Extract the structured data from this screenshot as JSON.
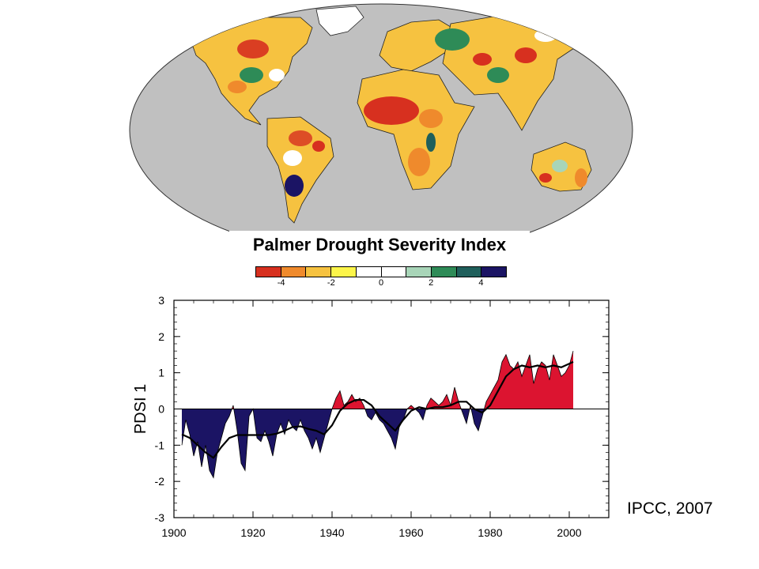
{
  "map": {
    "title": "Palmer Drought Severity Index",
    "colorbar": {
      "colors": [
        "#d7301f",
        "#ef8a2c",
        "#f6c240",
        "#fdf54a",
        "#ffffff",
        "#ffffff",
        "#a8d5b8",
        "#2e8b57",
        "#1f5f5b",
        "#1b1464"
      ],
      "tick_labels": [
        "-4",
        "-2",
        "0",
        "2",
        "4"
      ],
      "tick_values": [
        -4,
        -2,
        0,
        2,
        4
      ],
      "range": [
        -5,
        5
      ]
    },
    "colors": {
      "ocean": "#c0c0c0",
      "land_base": "#f6c240",
      "dry": "#d7301f",
      "wet": "#1f6b4f"
    }
  },
  "chart_data": {
    "type": "area",
    "title": "",
    "xlabel": "",
    "ylabel": "PDSI 1",
    "xlim": [
      1900,
      2010
    ],
    "ylim": [
      -3,
      3
    ],
    "x_ticks": [
      1900,
      1920,
      1940,
      1960,
      1980,
      2000
    ],
    "y_ticks": [
      -3,
      -2,
      -1,
      0,
      1,
      2,
      3
    ],
    "grid": false,
    "positive_color": "#dc1430",
    "negative_color": "#1b1464",
    "series": [
      {
        "values_x": [
          1902,
          1903,
          1904,
          1905,
          1906,
          1907,
          1908,
          1909,
          1910,
          1911,
          1912,
          1913,
          1914,
          1915,
          1916,
          1917,
          1918,
          1919,
          1920,
          1921,
          1922,
          1923,
          1924,
          1925,
          1926,
          1927,
          1928,
          1929,
          1930,
          1931,
          1932,
          1933,
          1934,
          1935,
          1936,
          1937,
          1938,
          1939,
          1940,
          1941,
          1942,
          1943,
          1944,
          1945,
          1946,
          1947,
          1948,
          1949,
          1950,
          1951,
          1952,
          1953,
          1954,
          1955,
          1956,
          1957,
          1958,
          1959,
          1960,
          1961,
          1962,
          1963,
          1964,
          1965,
          1966,
          1967,
          1968,
          1969,
          1970,
          1971,
          1972,
          1973,
          1974,
          1975,
          1976,
          1977,
          1978,
          1979,
          1980,
          1981,
          1982,
          1983,
          1984,
          1985,
          1986,
          1987,
          1988,
          1989,
          1990,
          1991,
          1992,
          1993,
          1994,
          1995,
          1996,
          1997,
          1998,
          1999,
          2000,
          2001
        ],
        "values_y": [
          -1.0,
          -0.3,
          -0.7,
          -1.3,
          -0.9,
          -1.6,
          -1.0,
          -1.7,
          -1.9,
          -1.2,
          -0.8,
          -0.4,
          -0.2,
          0.1,
          -0.6,
          -1.5,
          -1.7,
          -0.2,
          0.0,
          -0.8,
          -0.9,
          -0.6,
          -0.9,
          -1.3,
          -0.7,
          -0.4,
          -0.7,
          -0.3,
          -0.5,
          -0.6,
          -0.3,
          -0.6,
          -0.8,
          -1.1,
          -0.8,
          -1.2,
          -0.8,
          -0.4,
          0.0,
          0.3,
          0.5,
          0.1,
          0.2,
          0.4,
          0.2,
          0.3,
          0.1,
          -0.2,
          -0.3,
          -0.1,
          -0.3,
          -0.4,
          -0.6,
          -0.8,
          -1.1,
          -0.5,
          -0.3,
          0.0,
          0.1,
          0.0,
          -0.1,
          -0.3,
          0.1,
          0.3,
          0.2,
          0.1,
          0.2,
          0.4,
          0.1,
          0.6,
          0.2,
          -0.1,
          -0.4,
          0.1,
          -0.4,
          -0.6,
          -0.2,
          0.2,
          0.4,
          0.6,
          0.8,
          1.3,
          1.5,
          1.2,
          1.1,
          1.3,
          0.9,
          1.2,
          1.5,
          0.7,
          1.1,
          1.3,
          1.2,
          0.8,
          1.5,
          1.2,
          0.9,
          1.0,
          1.2,
          1.6
        ]
      },
      {
        "values_x": [
          1902,
          1904,
          1906,
          1908,
          1910,
          1912,
          1914,
          1916,
          1918,
          1920,
          1922,
          1924,
          1926,
          1928,
          1930,
          1932,
          1934,
          1936,
          1938,
          1940,
          1942,
          1944,
          1946,
          1948,
          1950,
          1952,
          1954,
          1956,
          1958,
          1960,
          1962,
          1964,
          1966,
          1968,
          1970,
          1972,
          1974,
          1976,
          1978,
          1980,
          1982,
          1984,
          1986,
          1988,
          1990,
          1992,
          1994,
          1996,
          1998,
          2000,
          2001
        ],
        "values_y": [
          -0.7,
          -0.8,
          -1.0,
          -1.2,
          -1.35,
          -1.05,
          -0.8,
          -0.72,
          -0.72,
          -0.72,
          -0.72,
          -0.72,
          -0.68,
          -0.6,
          -0.5,
          -0.48,
          -0.55,
          -0.6,
          -0.7,
          -0.45,
          -0.05,
          0.15,
          0.25,
          0.25,
          0.1,
          -0.2,
          -0.4,
          -0.6,
          -0.3,
          -0.05,
          0.05,
          0.0,
          0.05,
          0.05,
          0.1,
          0.2,
          0.2,
          0.0,
          -0.1,
          0.1,
          0.5,
          0.9,
          1.1,
          1.2,
          1.15,
          1.2,
          1.15,
          1.2,
          1.15,
          1.25,
          1.3
        ]
      }
    ]
  },
  "citation": "IPCC, 2007"
}
